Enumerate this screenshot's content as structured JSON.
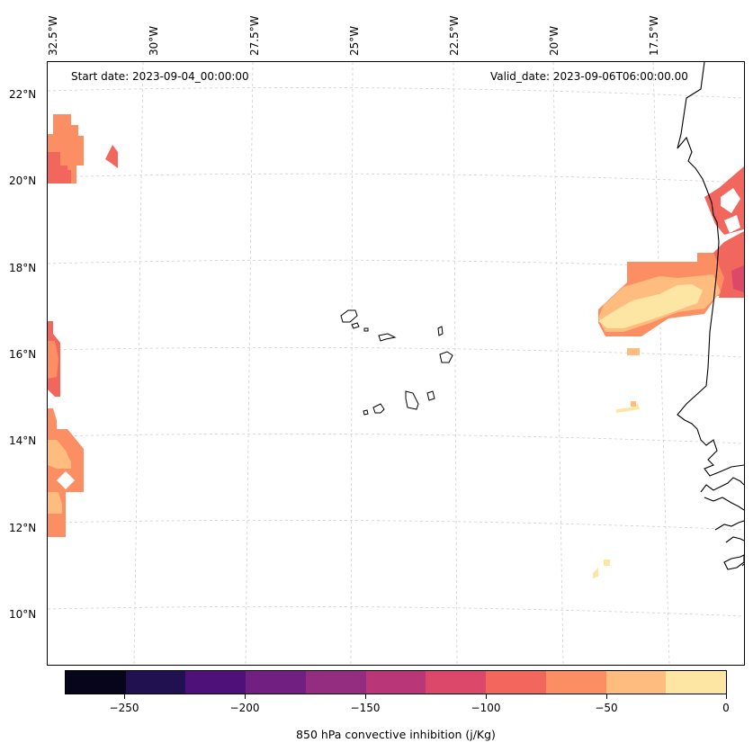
{
  "header": {
    "start_date": "Start date: 2023-09-04_00:00:00",
    "valid_date": "Valid_date: 2023-09-06T06:00:00.00"
  },
  "longitude_labels": [
    "32.5°W",
    "30°W",
    "27.5°W",
    "25°W",
    "22.5°W",
    "20°W",
    "17.5°W"
  ],
  "latitude_labels": [
    "22°N",
    "20°N",
    "18°N",
    "16°N",
    "14°N",
    "12°N",
    "10°N"
  ],
  "colorbar": {
    "title": "850 hPa convective inhibition (j/Kg)",
    "colors": [
      "#07051a",
      "#221150",
      "#4e1179",
      "#711f81",
      "#942c80",
      "#b93779",
      "#dc4869",
      "#f2675d",
      "#fc8e64",
      "#febc7f",
      "#fde6a4"
    ],
    "tick_labels": [
      "−250",
      "−200",
      "−150",
      "−100",
      "−50",
      "0"
    ]
  },
  "legend_levels": {
    "lt_100": "#f2675d",
    "m100_m75": "#f2675d",
    "m75_m50": "#fc8e64",
    "m50_m25": "#febc7f",
    "m25_0": "#fde6a4"
  }
}
